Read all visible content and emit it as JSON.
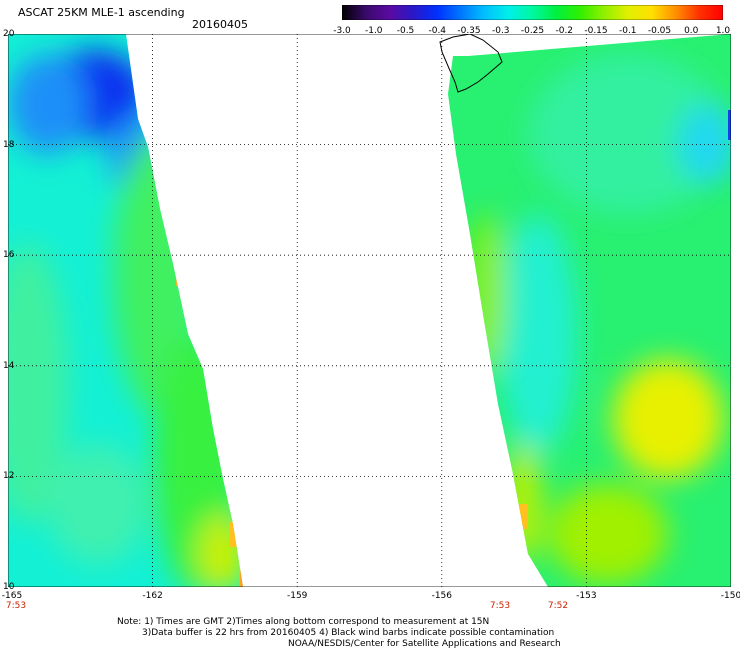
{
  "header": {
    "title": "ASCAT 25KM MLE-1 ascending",
    "date": "20160405"
  },
  "colorbar": {
    "labels": [
      "-3.0",
      "-1.0",
      "-0.5",
      "-0.4",
      "-0.35",
      "-0.3",
      "-0.25",
      "-0.2",
      "-0.15",
      "-0.1",
      "-0.05",
      "0.0",
      "1.0"
    ],
    "colors": [
      "#000000",
      "#3a0a6a",
      "#5a0aa0",
      "#2a18c8",
      "#0030ff",
      "#0078ff",
      "#00c0ff",
      "#00f0e8",
      "#00f8a0",
      "#00f040",
      "#30f000",
      "#90f000",
      "#e0f000",
      "#ffe000",
      "#ff9000",
      "#ff3000",
      "#ff0000"
    ]
  },
  "map": {
    "lat_labels": [
      "20",
      "18",
      "16",
      "14",
      "12",
      "10"
    ],
    "lon_labels": [
      "-165",
      "-162",
      "-159",
      "-156",
      "-153",
      "-150"
    ],
    "time_labels": [
      "7:53",
      "7:53",
      "7:52"
    ]
  },
  "notes": {
    "line1": "Note: 1) Times are GMT 2)Times along bottom correspond to measurement at 15N",
    "line2": "3)Data buffer is 22 hrs from 20160405 4) Black wind barbs indicate possible contamination",
    "line3": "NOAA/NESDIS/Center for Satellite Applications and Research"
  }
}
